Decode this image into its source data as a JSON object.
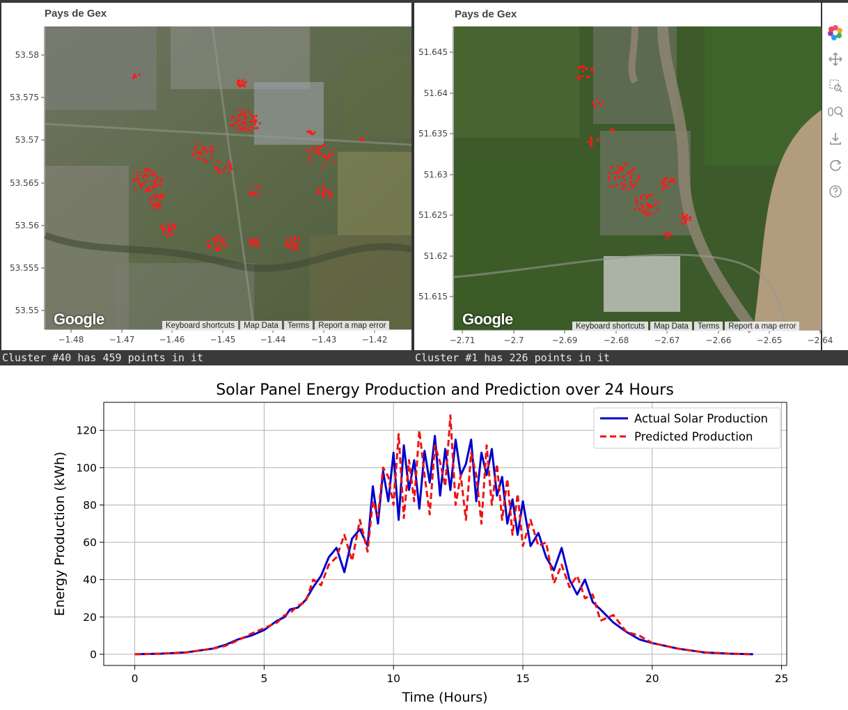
{
  "left_map": {
    "title": "Pays de Gex",
    "y_ticks": [
      "53.58",
      "53.575",
      "53.57",
      "53.565",
      "53.56",
      "53.555",
      "53.55"
    ],
    "x_ticks": [
      "−1.48",
      "−1.47",
      "−1.46",
      "−1.45",
      "−1.44",
      "−1.43",
      "−1.42"
    ],
    "cluster_text": "Cluster #40 has 459 points in it",
    "point_color": "#ff1a1a"
  },
  "right_map": {
    "title": "Pays de Gex",
    "y_ticks": [
      "51.645",
      "51.64",
      "51.635",
      "51.63",
      "51.625",
      "51.62",
      "51.615"
    ],
    "x_ticks": [
      "−2.71",
      "−2.7",
      "−2.69",
      "−2.68",
      "−2.67",
      "−2.66",
      "−2.65",
      "−2.64"
    ],
    "cluster_text": "Cluster #1 has 226 points in it",
    "point_color": "#ff1a1a"
  },
  "map_attribution": {
    "google_logo": "Google",
    "keyboard_shortcuts": "Keyboard shortcuts",
    "map_data": "Map Data",
    "terms": "Terms",
    "report": "Report a map error"
  },
  "toolbar": {
    "tools": [
      "bokeh-logo-icon",
      "pan-icon",
      "box-zoom-icon",
      "wheel-zoom-icon",
      "save-icon",
      "reset-icon",
      "help-icon"
    ]
  },
  "chart_data": {
    "type": "line",
    "title": "Solar Panel Energy Production and Prediction over 24 Hours",
    "xlabel": "Time (Hours)",
    "ylabel": "Energy Production (kWh)",
    "xlim": [
      -1.2,
      25.2
    ],
    "ylim": [
      -6,
      135
    ],
    "x_ticks": [
      0,
      5,
      10,
      15,
      20,
      25
    ],
    "y_ticks": [
      0,
      20,
      40,
      60,
      80,
      100,
      120
    ],
    "grid": true,
    "legend_position": "top-right",
    "series": [
      {
        "name": "Actual Solar Production",
        "color": "#0000cc",
        "style": "solid",
        "x": [
          0,
          1,
          2,
          3,
          3.5,
          4,
          4.5,
          5,
          5.5,
          5.8,
          6,
          6.3,
          6.6,
          6.9,
          7.2,
          7.5,
          7.8,
          8.1,
          8.4,
          8.7,
          9,
          9.2,
          9.4,
          9.6,
          9.8,
          10,
          10.2,
          10.4,
          10.6,
          10.8,
          11,
          11.2,
          11.4,
          11.6,
          11.8,
          12,
          12.2,
          12.4,
          12.6,
          12.8,
          13,
          13.2,
          13.4,
          13.6,
          13.8,
          14,
          14.2,
          14.4,
          14.6,
          14.8,
          15,
          15.3,
          15.6,
          15.9,
          16.2,
          16.5,
          16.8,
          17.1,
          17.4,
          17.7,
          18,
          18.5,
          19,
          19.5,
          20,
          21,
          22,
          23,
          23.9
        ],
        "y": [
          0,
          0.3,
          1.0,
          3.0,
          5,
          8,
          10,
          13,
          18,
          20,
          24,
          25,
          29,
          36,
          42,
          52,
          57,
          44,
          62,
          67,
          58,
          90,
          70,
          98,
          82,
          108,
          72,
          112,
          88,
          104,
          78,
          109,
          92,
          117,
          85,
          110,
          88,
          115,
          96,
          102,
          115,
          82,
          108,
          96,
          110,
          85,
          95,
          70,
          83,
          64,
          82,
          58,
          65,
          52,
          45,
          57,
          40,
          32,
          40,
          28,
          24,
          17,
          12,
          8,
          6,
          3,
          1,
          0.3,
          0
        ]
      },
      {
        "name": "Predicted Production",
        "color": "#ee1111",
        "style": "dashed",
        "x": [
          0,
          1,
          2,
          3,
          3.5,
          4,
          4.5,
          5,
          5.5,
          5.8,
          6,
          6.3,
          6.6,
          6.9,
          7.2,
          7.5,
          7.8,
          8.1,
          8.4,
          8.7,
          9,
          9.2,
          9.4,
          9.6,
          9.8,
          10,
          10.2,
          10.4,
          10.6,
          10.8,
          11,
          11.2,
          11.4,
          11.6,
          11.8,
          12,
          12.2,
          12.4,
          12.6,
          12.8,
          13,
          13.2,
          13.4,
          13.6,
          13.8,
          14,
          14.2,
          14.4,
          14.6,
          14.8,
          15,
          15.3,
          15.6,
          15.9,
          16.2,
          16.5,
          16.8,
          17.1,
          17.4,
          17.7,
          18,
          18.5,
          19,
          19.5,
          20,
          21,
          22,
          23,
          23.9
        ],
        "y": [
          0,
          0.3,
          1.0,
          3.0,
          4.5,
          7.5,
          11,
          14,
          17,
          21,
          22,
          26,
          28,
          40,
          37,
          48,
          52,
          64,
          50,
          72,
          55,
          82,
          74,
          100,
          95,
          80,
          118,
          73,
          104,
          82,
          120,
          96,
          75,
          112,
          103,
          90,
          128,
          80,
          96,
          72,
          108,
          96,
          70,
          112,
          80,
          102,
          72,
          94,
          64,
          86,
          58,
          72,
          58,
          60,
          38,
          48,
          36,
          42,
          30,
          32,
          18,
          21,
          12,
          10,
          6,
          3,
          1,
          0.3,
          0
        ]
      }
    ]
  }
}
